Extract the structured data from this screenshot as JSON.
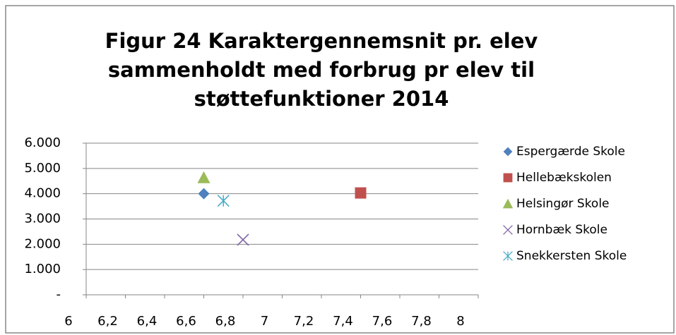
{
  "chart_data": {
    "type": "scatter",
    "title": [
      "Figur 24 Karaktergennemsnit pr. elev",
      "sammenholdt med forbrug pr elev til",
      "støttefunktioner 2014"
    ],
    "series": [
      {
        "name": "Espergærde Skole",
        "color": "#4f81bd",
        "marker": "diamond",
        "x": [
          6.6
        ],
        "values": [
          4000
        ]
      },
      {
        "name": "Hellebækskolen",
        "color": "#c0504d",
        "marker": "square",
        "x": [
          7.4
        ],
        "values": [
          4030
        ]
      },
      {
        "name": "Helsingør Skole",
        "color": "#9bbb59",
        "marker": "triangle",
        "x": [
          6.6
        ],
        "values": [
          4640
        ]
      },
      {
        "name": "Hornbæk Skole",
        "color": "#8064a2",
        "marker": "x",
        "x": [
          6.8
        ],
        "values": [
          2180
        ]
      },
      {
        "name": "Snekkersten Skole",
        "color": "#4bacc6",
        "marker": "star",
        "x": [
          6.7
        ],
        "values": [
          3720
        ]
      }
    ],
    "xlim": [
      6,
      8
    ],
    "xticks": [
      6,
      {
        "value": 6.2,
        "label": "6,2"
      },
      {
        "value": 6.4,
        "label": "6,4"
      },
      {
        "value": 6.6,
        "label": "6,6"
      },
      {
        "value": 6.8,
        "label": "6,8"
      },
      7,
      {
        "value": 7.2,
        "label": "7,2"
      },
      {
        "value": 7.4,
        "label": "7,4"
      },
      {
        "value": 7.6,
        "label": "7,6"
      },
      {
        "value": 7.8,
        "label": "7,8"
      },
      8
    ],
    "ylim": [
      0,
      6000
    ],
    "yticks": [
      {
        "value": 0,
        "label": "-"
      },
      {
        "value": 1000,
        "label": "1.000"
      },
      {
        "value": 2000,
        "label": "2.000"
      },
      {
        "value": 3000,
        "label": "3.000"
      },
      {
        "value": 4000,
        "label": "4.000"
      },
      {
        "value": 5000,
        "label": "5.000"
      },
      {
        "value": 6000,
        "label": "6.000"
      }
    ],
    "grid": true,
    "legend": "right"
  }
}
